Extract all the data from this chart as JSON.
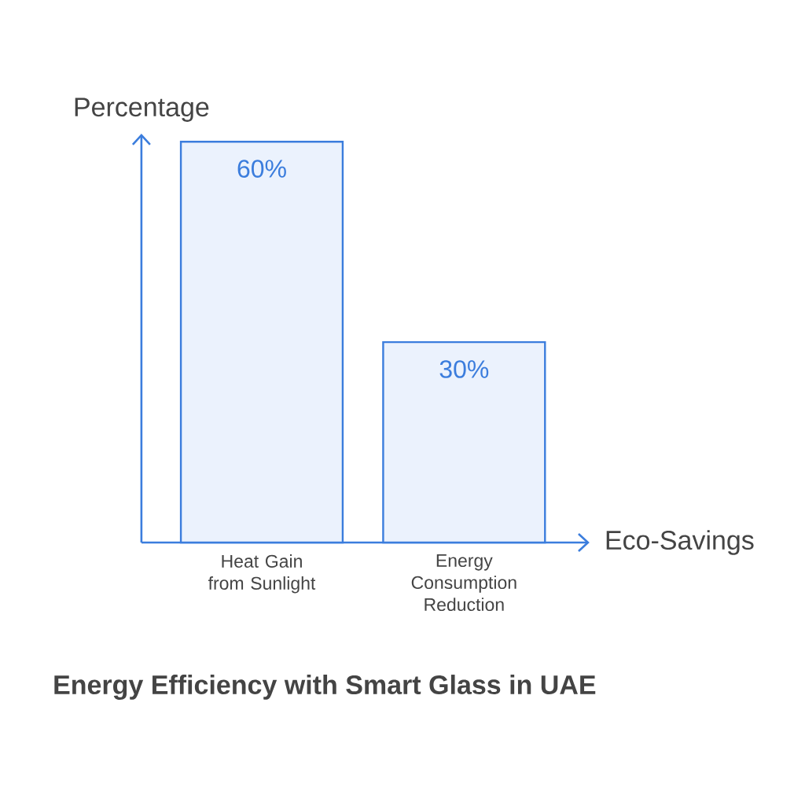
{
  "chart_data": {
    "type": "bar",
    "title": "Energy Efficiency with Smart Glass in UAE",
    "xlabel": "Eco-Savings",
    "ylabel": "Percentage",
    "categories": [
      "Heat Gain from Sunlight",
      "Energy Consumption Reduction"
    ],
    "values": [
      60,
      30
    ],
    "value_labels": [
      "60%",
      "30%"
    ],
    "color": "#ebf2fd",
    "ylim": [
      0,
      61.2
    ]
  }
}
